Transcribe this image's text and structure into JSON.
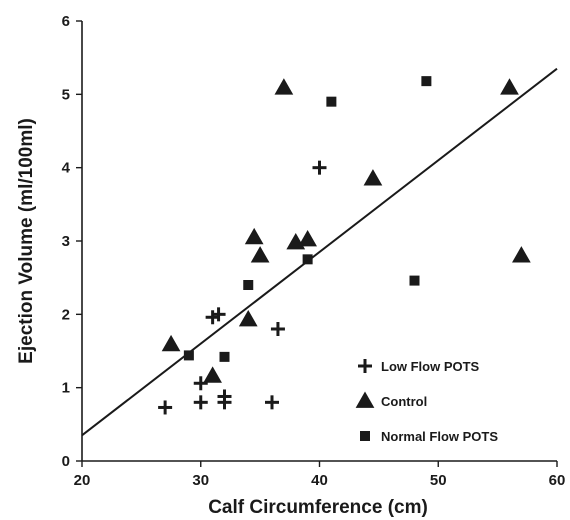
{
  "chart_data": {
    "type": "scatter",
    "title": "",
    "xlabel": "Calf Circumference (cm)",
    "ylabel": "Ejection Volume (ml/100ml)",
    "xlim": [
      20,
      60
    ],
    "ylim": [
      0,
      6
    ],
    "x_ticks": [
      20,
      30,
      40,
      50,
      60
    ],
    "y_ticks": [
      0,
      1,
      2,
      3,
      4,
      5,
      6
    ],
    "x_tick_labels": [
      "20",
      "30",
      "40",
      "50",
      "60"
    ],
    "y_tick_labels": [
      "0",
      "1",
      "2",
      "3",
      "4",
      "5",
      "6"
    ],
    "grid": false,
    "legend_position": "bottom-right",
    "series": [
      {
        "name": "Low Flow POTS",
        "marker": "plus",
        "points": [
          [
            27,
            0.73
          ],
          [
            30,
            0.8
          ],
          [
            30,
            1.06
          ],
          [
            31,
            1.96
          ],
          [
            31.5,
            2.0
          ],
          [
            32,
            0.8
          ],
          [
            32,
            0.88
          ],
          [
            36,
            0.8
          ],
          [
            36.5,
            1.8
          ],
          [
            40,
            4.0
          ]
        ]
      },
      {
        "name": "Control",
        "marker": "triangle",
        "points": [
          [
            27.5,
            1.59
          ],
          [
            31,
            1.16
          ],
          [
            34,
            1.93
          ],
          [
            34.5,
            3.05
          ],
          [
            35,
            2.8
          ],
          [
            37,
            5.09
          ],
          [
            38,
            2.98
          ],
          [
            39,
            3.02
          ],
          [
            44.5,
            3.85
          ],
          [
            56,
            5.09
          ],
          [
            57,
            2.8
          ]
        ]
      },
      {
        "name": "Normal Flow POTS",
        "marker": "square",
        "points": [
          [
            29,
            1.44
          ],
          [
            32,
            1.42
          ],
          [
            34,
            2.4
          ],
          [
            39,
            2.75
          ],
          [
            41,
            4.9
          ],
          [
            48,
            2.46
          ],
          [
            49,
            5.18
          ]
        ]
      }
    ],
    "fit_line": {
      "x": [
        20,
        60
      ],
      "y": [
        0.35,
        5.35
      ]
    },
    "color": "#1a1a1a"
  }
}
